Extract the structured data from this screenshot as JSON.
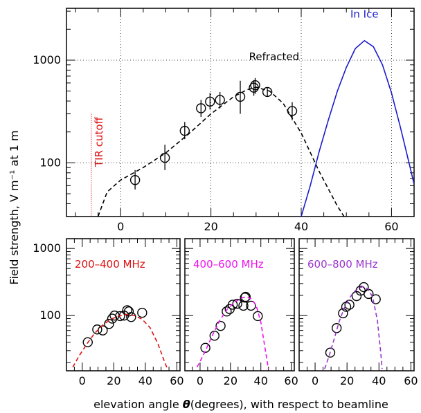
{
  "figure": {
    "ylabel": "Field strength, V m⁻¹ at 1 m",
    "xlabel_prefix": "elevation angle ",
    "xlabel_symbol": "θ",
    "xlabel_suffix": "(degrees), with respect to beamline"
  },
  "chart_data": [
    {
      "type": "scatter",
      "panel": "top",
      "xlim": [
        -12,
        65
      ],
      "ylim": [
        30,
        3200
      ],
      "yscale": "log",
      "grid": true,
      "x_ticks": [
        0,
        20,
        40,
        60
      ],
      "y_ticks": [
        100,
        1000
      ],
      "x_ticklabels": [
        "0",
        "20",
        "40",
        "60"
      ],
      "y_ticklabels": [
        "100",
        "1000"
      ],
      "annotations": [
        {
          "text": "Refracted",
          "color": "#000000",
          "at": [
            34,
            1000
          ]
        },
        {
          "text": "In Ice",
          "color": "#1a1acc",
          "at": [
            54,
            2600
          ]
        },
        {
          "text": "TIR cutoff",
          "color": "#dd1111",
          "at": [
            -4,
            160
          ]
        }
      ],
      "tir_cutoff_x": -6.5,
      "series": [
        {
          "kind": "points_with_errors",
          "color": "#000000",
          "x": [
            3.2,
            9.8,
            14.2,
            17.8,
            19.8,
            22.0,
            26.5,
            29.5,
            29.8,
            32.5,
            38.0
          ],
          "y": [
            68,
            112,
            205,
            340,
            395,
            410,
            440,
            540,
            570,
            490,
            320
          ],
          "yerr_low": [
            55,
            85,
            170,
            280,
            330,
            340,
            300,
            450,
            470,
            440,
            260
          ],
          "yerr_high": [
            85,
            150,
            250,
            410,
            480,
            490,
            630,
            640,
            670,
            540,
            390
          ]
        },
        {
          "kind": "curve",
          "style": "dashed",
          "color": "#000000",
          "x": [
            -5.0,
            -3.0,
            0.0,
            5.0,
            10.0,
            15.0,
            20.0,
            25.0,
            28.0,
            30.0,
            33.0,
            36.0,
            40.0,
            44.0,
            48.0,
            49.5
          ],
          "y": [
            30,
            52,
            68,
            90,
            125,
            190,
            300,
            440,
            515,
            545,
            500,
            380,
            195,
            82,
            38,
            30
          ]
        },
        {
          "kind": "curve",
          "style": "solid",
          "color": "#1a1acc",
          "x": [
            40.0,
            42.0,
            44.0,
            46.0,
            48.0,
            50.0,
            52.0,
            54.0,
            56.0,
            58.0,
            60.0,
            62.0,
            64.0,
            65.0
          ],
          "y": [
            30,
            60,
            130,
            260,
            500,
            850,
            1300,
            1550,
            1350,
            900,
            480,
            220,
            95,
            62
          ]
        }
      ]
    },
    {
      "type": "scatter",
      "panel": "bottom-left",
      "label": "200–400 MHz",
      "label_color": "#dd1111",
      "xlim": [
        -10,
        62
      ],
      "ylim": [
        15,
        1400
      ],
      "yscale": "log",
      "x_ticks": [
        0,
        20,
        40,
        60
      ],
      "y_ticks": [
        100,
        1000
      ],
      "x_ticklabels": [
        "0",
        "20",
        "40",
        "60"
      ],
      "y_ticklabels": [
        "100",
        "1000"
      ],
      "series": [
        {
          "kind": "points",
          "color": "#000000",
          "x": [
            3.5,
            9.5,
            13.0,
            17.0,
            19.0,
            20.5,
            24.0,
            26.5,
            28.5,
            29.5,
            31.0,
            38.0
          ],
          "y": [
            40,
            62,
            60,
            75,
            90,
            100,
            98,
            100,
            120,
            115,
            95,
            110
          ]
        },
        {
          "kind": "curve",
          "style": "dashed",
          "color": "#dd1111",
          "x": [
            -6,
            -2,
            3,
            8,
            13,
            18,
            23,
            28,
            33,
            38,
            43,
            48,
            52,
            54
          ],
          "y": [
            17,
            25,
            38,
            55,
            72,
            88,
            98,
            104,
            100,
            88,
            66,
            38,
            21,
            16
          ]
        }
      ]
    },
    {
      "type": "scatter",
      "panel": "bottom-middle",
      "label": "400–600 MHz",
      "label_color": "#ee11ee",
      "xlim": [
        -10,
        62
      ],
      "ylim": [
        15,
        1400
      ],
      "yscale": "log",
      "x_ticks": [
        0,
        20,
        40,
        60
      ],
      "y_ticks": [
        100,
        1000
      ],
      "x_ticklabels": [
        "0",
        "20",
        "40",
        "60"
      ],
      "y_ticklabels": [
        "",
        ""
      ],
      "series": [
        {
          "kind": "points",
          "color": "#000000",
          "x": [
            3.5,
            9.5,
            13.5,
            17.5,
            19.5,
            21.5,
            24.5,
            28.5,
            29.5,
            30.0,
            33.5,
            38.0
          ],
          "y": [
            33,
            50,
            70,
            115,
            125,
            145,
            150,
            140,
            185,
            190,
            140,
            98
          ]
        },
        {
          "kind": "curve",
          "style": "dashed",
          "color": "#ee11ee",
          "x": [
            -2,
            3,
            8,
            13,
            18,
            23,
            28,
            31,
            34,
            37,
            40,
            43,
            45
          ],
          "y": [
            17,
            28,
            50,
            85,
            125,
            160,
            185,
            190,
            175,
            140,
            80,
            30,
            16
          ]
        }
      ]
    },
    {
      "type": "scatter",
      "panel": "bottom-right",
      "label": "600–800 MHz",
      "label_color": "#9933cc",
      "xlim": [
        -10,
        62
      ],
      "ylim": [
        15,
        1400
      ],
      "yscale": "log",
      "x_ticks": [
        0,
        20,
        40,
        60
      ],
      "y_ticks": [
        100,
        1000
      ],
      "x_ticklabels": [
        "0",
        "20",
        "40",
        "60"
      ],
      "y_ticklabels": [
        "",
        ""
      ],
      "series": [
        {
          "kind": "points",
          "color": "#000000",
          "x": [
            9.5,
            13.5,
            17.5,
            19.5,
            21.5,
            26.0,
            28.5,
            30.5,
            33.5,
            38.0
          ],
          "y": [
            28,
            65,
            108,
            135,
            145,
            195,
            235,
            265,
            210,
            175
          ]
        },
        {
          "kind": "curve",
          "style": "dashed",
          "color": "#9933cc",
          "x": [
            6,
            9,
            12,
            15,
            18,
            21,
            24,
            27,
            30,
            33,
            36,
            39,
            41,
            42
          ],
          "y": [
            16,
            26,
            45,
            80,
            125,
            175,
            220,
            255,
            270,
            250,
            190,
            85,
            30,
            16
          ]
        }
      ]
    }
  ]
}
